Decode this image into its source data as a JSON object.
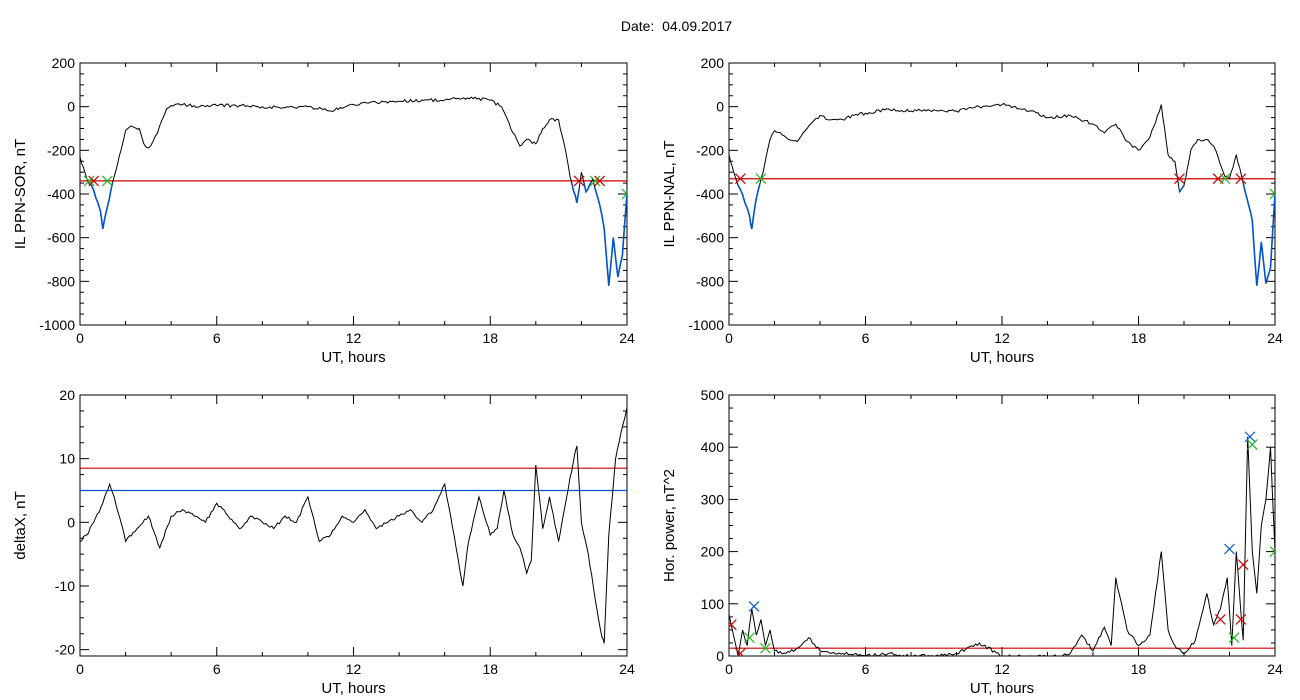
{
  "header": {
    "title": "Date:  04.09.2017"
  },
  "colors": {
    "black": "#000000",
    "red": "#cc0000",
    "blue": "#0055cc",
    "green": "#22bb22"
  },
  "chart_data": [
    {
      "id": "sor",
      "type": "line",
      "xlabel": "UT, hours",
      "ylabel": "IL PPN-SOR, nT",
      "xlim": [
        0,
        24
      ],
      "ylim": [
        -1000,
        200
      ],
      "xticks": [
        0,
        6,
        12,
        18,
        24
      ],
      "yticks": [
        -1000,
        -800,
        -600,
        -400,
        -200,
        0,
        200
      ],
      "threshold": {
        "y": -340
      },
      "x": [
        0,
        0.3,
        0.5,
        0.7,
        0.9,
        1.0,
        1.2,
        1.5,
        1.8,
        2.0,
        2.3,
        2.6,
        2.8,
        3.0,
        3.2,
        3.4,
        3.6,
        3.8,
        4.0,
        4.5,
        5.0,
        5.5,
        6.0,
        7.0,
        8.0,
        9.0,
        10.0,
        11.0,
        12.0,
        13.0,
        14.0,
        15.0,
        16.0,
        17.0,
        18.0,
        18.5,
        19.0,
        19.3,
        19.6,
        20.0,
        20.3,
        20.6,
        21.0,
        21.3,
        21.5,
        21.8,
        22.0,
        22.2,
        22.5,
        22.8,
        23.0,
        23.2,
        23.4,
        23.6,
        23.8,
        24.0
      ],
      "y": [
        -230,
        -330,
        -360,
        -420,
        -480,
        -560,
        -460,
        -320,
        -200,
        -110,
        -90,
        -100,
        -170,
        -190,
        -160,
        -120,
        -60,
        -10,
        5,
        10,
        5,
        0,
        5,
        5,
        0,
        -5,
        0,
        -20,
        10,
        20,
        25,
        30,
        30,
        40,
        30,
        0,
        -120,
        -180,
        -150,
        -170,
        -100,
        -60,
        -60,
        -200,
        -320,
        -440,
        -300,
        -390,
        -330,
        -450,
        -560,
        -820,
        -600,
        -780,
        -680,
        -400
      ],
      "markers": [
        {
          "x": 0.4,
          "y": -340,
          "type": "start"
        },
        {
          "x": 0.6,
          "y": -340,
          "type": "end"
        },
        {
          "x": 1.2,
          "y": -340,
          "type": "start"
        },
        {
          "x": 21.9,
          "y": -340,
          "type": "end"
        },
        {
          "x": 22.6,
          "y": -340,
          "type": "start"
        },
        {
          "x": 22.8,
          "y": -340,
          "type": "end"
        },
        {
          "x": 24.0,
          "y": -400,
          "type": "start"
        }
      ]
    },
    {
      "id": "nal",
      "type": "line",
      "xlabel": "UT, hours",
      "ylabel": "IL PPN-NAL, nT",
      "xlim": [
        0,
        24
      ],
      "ylim": [
        -1000,
        200
      ],
      "xticks": [
        0,
        6,
        12,
        18,
        24
      ],
      "yticks": [
        -1000,
        -800,
        -600,
        -400,
        -200,
        0,
        200
      ],
      "threshold": {
        "y": -330
      },
      "x": [
        0,
        0.3,
        0.5,
        0.7,
        0.9,
        1.0,
        1.2,
        1.5,
        1.8,
        2.0,
        2.5,
        3.0,
        3.5,
        4.0,
        4.5,
        5.0,
        5.5,
        6.0,
        7.0,
        8.0,
        9.0,
        10.0,
        11.0,
        12.0,
        13.0,
        14.0,
        15.0,
        16.0,
        16.5,
        17.0,
        17.5,
        18.0,
        18.5,
        19.0,
        19.3,
        19.6,
        19.8,
        20.0,
        20.3,
        20.6,
        21.0,
        21.3,
        21.5,
        21.8,
        22.0,
        22.3,
        22.6,
        23.0,
        23.2,
        23.4,
        23.6,
        23.8,
        24.0
      ],
      "y": [
        -220,
        -330,
        -380,
        -440,
        -500,
        -560,
        -420,
        -300,
        -150,
        -110,
        -140,
        -160,
        -90,
        -40,
        -60,
        -60,
        -40,
        -30,
        -10,
        -20,
        -15,
        -20,
        0,
        10,
        -10,
        -50,
        -40,
        -80,
        -120,
        -80,
        -160,
        -200,
        -140,
        10,
        -220,
        -250,
        -390,
        -360,
        -200,
        -150,
        -150,
        -180,
        -230,
        -320,
        -330,
        -220,
        -350,
        -520,
        -820,
        -620,
        -810,
        -740,
        -400
      ],
      "markers": [
        {
          "x": 0.5,
          "y": -330,
          "type": "end"
        },
        {
          "x": 1.4,
          "y": -330,
          "type": "start"
        },
        {
          "x": 19.8,
          "y": -330,
          "type": "end"
        },
        {
          "x": 21.5,
          "y": -330,
          "type": "end"
        },
        {
          "x": 21.8,
          "y": -330,
          "type": "start"
        },
        {
          "x": 22.5,
          "y": -330,
          "type": "end"
        },
        {
          "x": 24.0,
          "y": -400,
          "type": "start"
        }
      ]
    },
    {
      "id": "deltax",
      "type": "line",
      "xlabel": "UT, hours",
      "ylabel": "deltaX, nT",
      "xlim": [
        0,
        24
      ],
      "ylim": [
        -21,
        20
      ],
      "xticks": [
        0,
        6,
        12,
        18,
        24
      ],
      "yticks": [
        -20,
        -10,
        0,
        10,
        20
      ],
      "threshold": {
        "y": 8.5
      },
      "threshold2": {
        "y": 5
      },
      "x": [
        0,
        0.3,
        0.6,
        1.0,
        1.3,
        1.5,
        1.8,
        2.0,
        2.5,
        3.0,
        3.5,
        4.0,
        4.5,
        5.0,
        5.5,
        6.0,
        6.5,
        7.0,
        7.5,
        8.0,
        8.5,
        9.0,
        9.5,
        10.0,
        10.5,
        11.0,
        11.5,
        12.0,
        12.5,
        13.0,
        13.5,
        14.0,
        14.5,
        15.0,
        15.5,
        16.0,
        16.5,
        16.8,
        17.0,
        17.5,
        18.0,
        18.3,
        18.6,
        19.0,
        19.3,
        19.6,
        19.8,
        20.0,
        20.3,
        20.6,
        21.0,
        21.5,
        21.8,
        22.0,
        22.3,
        22.6,
        22.9,
        23.0,
        23.2,
        23.5,
        23.8,
        24.0
      ],
      "y": [
        -3,
        -2,
        0,
        3,
        6,
        4,
        0,
        -3,
        -1,
        1,
        -4,
        1,
        2,
        1,
        0,
        3,
        1,
        -1,
        1,
        0,
        -1,
        1,
        0,
        4,
        -3,
        -2,
        1,
        0,
        2,
        -1,
        0,
        1,
        2,
        0,
        2,
        6,
        -4,
        -10,
        -4,
        4,
        -2,
        -1,
        5,
        -2,
        -4,
        -8,
        -6,
        9,
        -1,
        4,
        -3,
        7,
        12,
        0,
        -5,
        -12,
        -18,
        -19,
        -2,
        10,
        15,
        18
      ],
      "markers": []
    },
    {
      "id": "power",
      "type": "line",
      "xlabel": "UT, hours",
      "ylabel": "Hor. power, nT^2",
      "xlim": [
        0,
        24
      ],
      "ylim": [
        0,
        500
      ],
      "xticks": [
        0,
        6,
        12,
        18,
        24
      ],
      "yticks": [
        0,
        100,
        200,
        300,
        400,
        500
      ],
      "threshold": {
        "y": 15
      },
      "x": [
        0,
        0.2,
        0.4,
        0.6,
        0.8,
        1.0,
        1.2,
        1.4,
        1.6,
        1.8,
        2.0,
        2.5,
        3.0,
        3.5,
        4.0,
        5.0,
        6.0,
        7.0,
        8.0,
        9.0,
        10.0,
        11.0,
        12.0,
        13.0,
        14.0,
        14.5,
        15.0,
        15.5,
        16.0,
        16.5,
        16.8,
        17.0,
        17.5,
        18.0,
        18.5,
        19.0,
        19.3,
        19.6,
        20.0,
        20.5,
        21.0,
        21.3,
        21.6,
        21.9,
        22.1,
        22.3,
        22.6,
        22.8,
        23.0,
        23.2,
        23.4,
        23.6,
        23.8,
        24.0
      ],
      "y": [
        80,
        40,
        0,
        50,
        20,
        90,
        40,
        70,
        20,
        50,
        10,
        5,
        15,
        35,
        10,
        5,
        0,
        5,
        0,
        0,
        5,
        25,
        0,
        0,
        0,
        0,
        5,
        40,
        10,
        55,
        20,
        150,
        50,
        20,
        40,
        200,
        50,
        20,
        5,
        30,
        120,
        60,
        90,
        150,
        20,
        200,
        30,
        420,
        200,
        120,
        250,
        300,
        400,
        200
      ],
      "markers": [
        {
          "x": 0.1,
          "y": 60,
          "type": "end"
        },
        {
          "x": 0.5,
          "y": 5,
          "type": "end"
        },
        {
          "x": 0.9,
          "y": 35,
          "type": "start"
        },
        {
          "x": 1.1,
          "y": 95,
          "type": "peak"
        },
        {
          "x": 1.6,
          "y": 15,
          "type": "start"
        },
        {
          "x": 21.6,
          "y": 70,
          "type": "end"
        },
        {
          "x": 22.0,
          "y": 205,
          "type": "peak"
        },
        {
          "x": 22.2,
          "y": 35,
          "type": "start"
        },
        {
          "x": 22.5,
          "y": 70,
          "type": "end"
        },
        {
          "x": 22.6,
          "y": 175,
          "type": "end"
        },
        {
          "x": 22.9,
          "y": 420,
          "type": "peak"
        },
        {
          "x": 23.0,
          "y": 405,
          "type": "start"
        },
        {
          "x": 24.0,
          "y": 200,
          "type": "start"
        }
      ]
    }
  ]
}
